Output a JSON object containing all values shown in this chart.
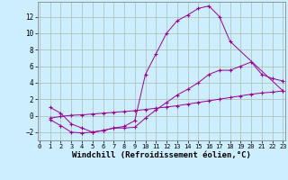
{
  "bg_color": "#cceeff",
  "line_color": "#990099",
  "grid_color": "#aabbaa",
  "xlabel": "Windchill (Refroidissement éolien,°C)",
  "xlabel_fontsize": 6.5,
  "ytick_labels": [
    "-2",
    "0",
    "2",
    "4",
    "6",
    "8",
    "10",
    "12"
  ],
  "ytick_vals": [
    -2,
    0,
    2,
    4,
    6,
    8,
    10,
    12
  ],
  "xtick_vals": [
    0,
    1,
    2,
    3,
    4,
    5,
    6,
    7,
    8,
    9,
    10,
    11,
    12,
    13,
    14,
    15,
    16,
    17,
    18,
    19,
    20,
    21,
    22,
    23
  ],
  "xlim": [
    -0.2,
    23.2
  ],
  "ylim": [
    -3.0,
    13.8
  ],
  "line1_x": [
    1,
    2,
    3,
    4,
    5,
    6,
    7,
    8,
    9,
    10,
    11,
    12,
    13,
    14,
    15,
    16,
    17,
    18,
    23
  ],
  "line1_y": [
    1.0,
    0.3,
    -1.0,
    -1.5,
    -2.0,
    -1.8,
    -1.5,
    -1.3,
    -0.6,
    5.0,
    7.5,
    10.0,
    11.5,
    12.2,
    13.0,
    13.3,
    12.0,
    9.0,
    3.0
  ],
  "line2_x": [
    1,
    2,
    3,
    4,
    5,
    6,
    7,
    8,
    9,
    10,
    11,
    12,
    13,
    14,
    15,
    16,
    17,
    18,
    19,
    20,
    21,
    22,
    23
  ],
  "line2_y": [
    -0.3,
    -0.1,
    0.05,
    0.1,
    0.2,
    0.3,
    0.4,
    0.5,
    0.6,
    0.75,
    0.9,
    1.05,
    1.2,
    1.4,
    1.6,
    1.8,
    2.0,
    2.2,
    2.4,
    2.6,
    2.75,
    2.85,
    3.0
  ],
  "line3_x": [
    1,
    2,
    3,
    4,
    5,
    6,
    7,
    8,
    9,
    10,
    11,
    12,
    13,
    14,
    15,
    16,
    17,
    18,
    19,
    20,
    21,
    22,
    23
  ],
  "line3_y": [
    -0.5,
    -1.2,
    -2.0,
    -2.1,
    -2.0,
    -1.8,
    -1.5,
    -1.5,
    -1.4,
    -0.3,
    0.7,
    1.6,
    2.5,
    3.2,
    4.0,
    5.0,
    5.5,
    5.5,
    6.0,
    6.5,
    5.0,
    4.5,
    4.2
  ],
  "tick_fontsize": 5.5,
  "ylabel_fontsize": 5.5
}
